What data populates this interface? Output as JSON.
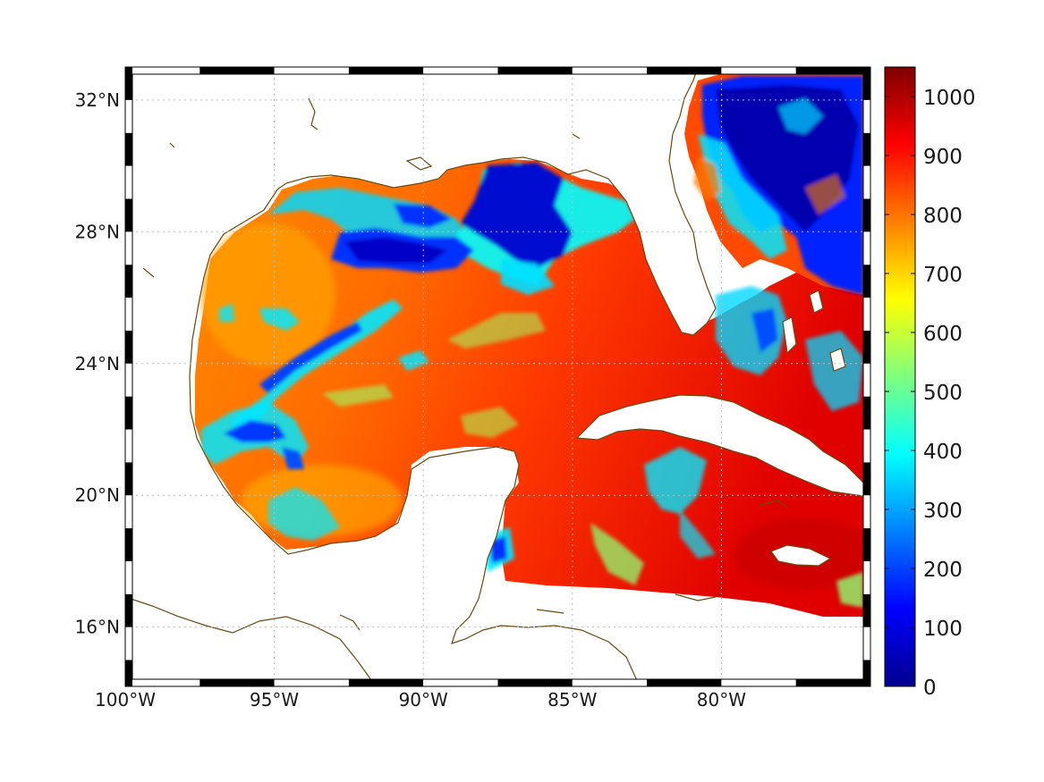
{
  "map": {
    "lon_range": [
      -100,
      -75
    ],
    "lat_range": [
      14.2,
      33
    ],
    "lon_ticks": [
      {
        "value": -100,
        "label": "100°W"
      },
      {
        "value": -95,
        "label": "95°W"
      },
      {
        "value": -90,
        "label": "90°W"
      },
      {
        "value": -85,
        "label": "85°W"
      },
      {
        "value": -80,
        "label": "80°W"
      }
    ],
    "lat_ticks": [
      {
        "value": 16,
        "label": "16°N"
      },
      {
        "value": 20,
        "label": "20°N"
      },
      {
        "value": 24,
        "label": "24°N"
      },
      {
        "value": 28,
        "label": "28°N"
      },
      {
        "value": 32,
        "label": "32°N"
      }
    ],
    "grid": "dotted",
    "coastline_color": "#6b4a12",
    "land_color": "#ffffff"
  },
  "colorbar": {
    "colormap": "jet",
    "range": [
      0,
      1050
    ],
    "ticks": [
      {
        "value": 0,
        "label": "0"
      },
      {
        "value": 100,
        "label": "100"
      },
      {
        "value": 200,
        "label": "200"
      },
      {
        "value": 300,
        "label": "300"
      },
      {
        "value": 400,
        "label": "400"
      },
      {
        "value": 500,
        "label": "500"
      },
      {
        "value": 600,
        "label": "600"
      },
      {
        "value": 700,
        "label": "700"
      },
      {
        "value": 800,
        "label": "800"
      },
      {
        "value": 900,
        "label": "900"
      },
      {
        "value": 1000,
        "label": "1000"
      }
    ]
  }
}
